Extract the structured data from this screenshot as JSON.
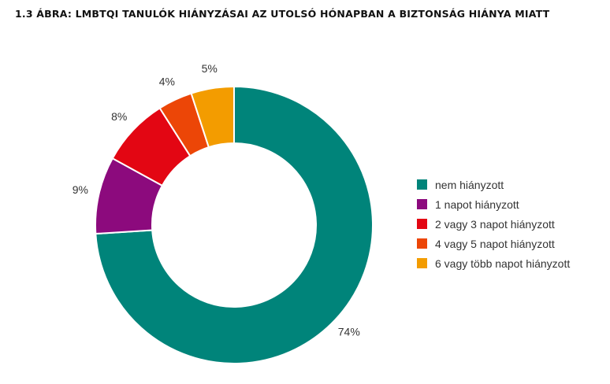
{
  "chart_data": {
    "type": "pie",
    "variant": "donut",
    "title": "1.3 ÁBRA: LMBTQI TANULÓK HIÁNYZÁSAI AZ UTOLSÓ HÓNAPBAN A BIZTONSÁG HIÁNYA MIATT",
    "legend_position": "right",
    "slices": [
      {
        "name": "nem hiányzott",
        "value": 74,
        "label": "74%",
        "color": "#00847a"
      },
      {
        "name": "1 napot hiányzott",
        "value": 9,
        "label": "9%",
        "color": "#8c0a7d"
      },
      {
        "name": "2 vagy 3 napot hiányzott",
        "value": 8,
        "label": "8%",
        "color": "#e30613"
      },
      {
        "name": "4 vagy 5 napot hiányzott",
        "value": 4,
        "label": "4%",
        "color": "#ec4607"
      },
      {
        "name": "6 vagy több napot hiányzott",
        "value": 5,
        "label": "5%",
        "color": "#f39c00"
      }
    ]
  }
}
